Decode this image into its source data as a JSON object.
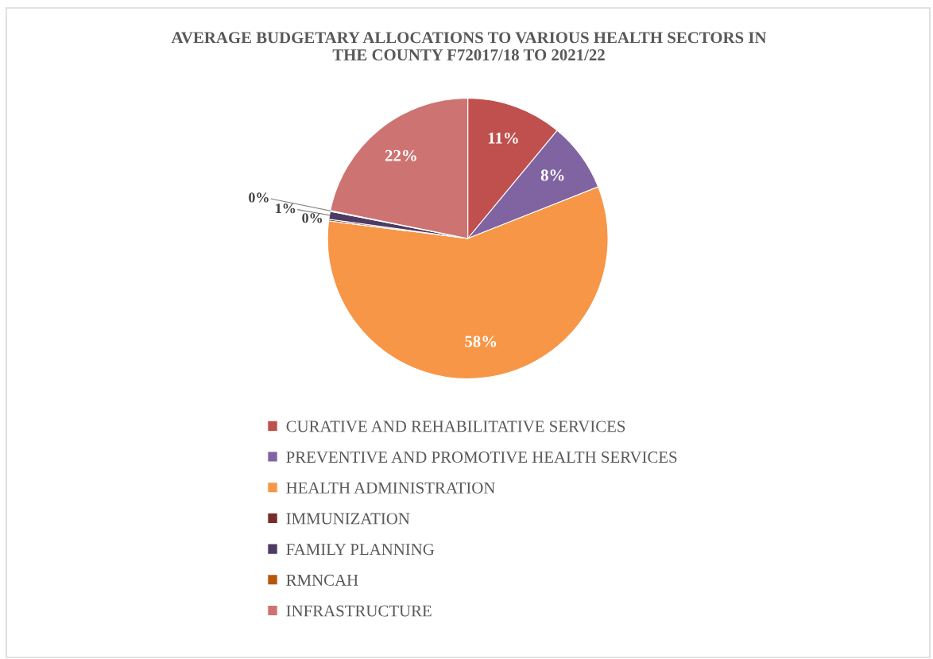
{
  "chart_data": {
    "type": "pie",
    "title": "AVERAGE BUDGETARY ALLOCATIONS TO VARIOUS HEALTH SECTORS IN\nTHE COUNTY F72017/18 TO 2021/22",
    "categories": [
      "CURATIVE AND REHABILITATIVE SERVICES",
      "PREVENTIVE AND PROMOTIVE HEALTH SERVICES",
      "HEALTH ADMINISTRATION",
      "IMMUNIZATION",
      "FAMILY PLANNING",
      "RMNCAH",
      "INFRASTRUCTURE"
    ],
    "values": [
      11,
      8,
      58,
      0.2,
      0.9,
      0.1,
      21.8
    ],
    "value_labels": [
      "11%",
      "8%",
      "58%",
      "0%",
      "1%",
      "0%",
      "22%"
    ],
    "colors": [
      "#c0504d",
      "#8064a2",
      "#f79646",
      "#772c2a",
      "#4d3b62",
      "#b65708",
      "#cd7371"
    ],
    "legend": "bottom"
  }
}
